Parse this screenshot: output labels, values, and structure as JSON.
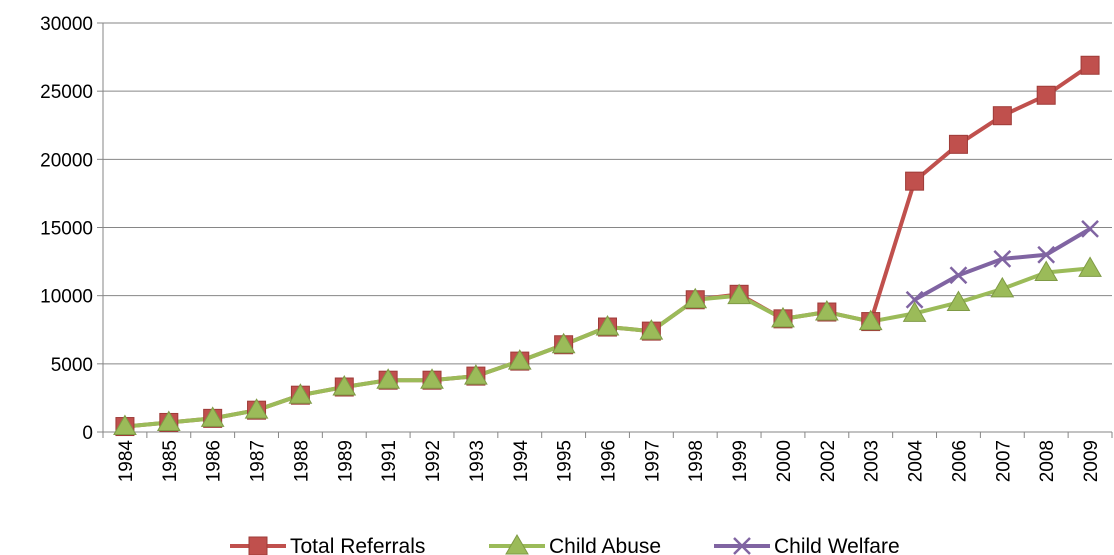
{
  "chart_data": {
    "type": "line",
    "title": "",
    "xlabel": "",
    "ylabel": "",
    "categories": [
      "1984",
      "1985",
      "1986",
      "1987",
      "1988",
      "1989",
      "1991",
      "1992",
      "1993",
      "1994",
      "1995",
      "1996",
      "1997",
      "1998",
      "1999",
      "2000",
      "2002",
      "2003",
      "2004",
      "2006",
      "2007",
      "2008",
      "2009"
    ],
    "ylim": [
      0,
      30000
    ],
    "yticks": [
      0,
      5000,
      10000,
      15000,
      20000,
      25000,
      30000
    ],
    "grid": true,
    "legend_position": "bottom",
    "series": [
      {
        "name": "Total Referrals",
        "color": "#c0504d",
        "marker": "square",
        "values": [
          400,
          700,
          1000,
          1600,
          2700,
          3300,
          3800,
          3800,
          4100,
          5200,
          6400,
          7700,
          7400,
          9700,
          10100,
          8300,
          8800,
          8100,
          18400,
          21100,
          23200,
          24700,
          26900
        ]
      },
      {
        "name": "Child Abuse",
        "color": "#9bbb59",
        "marker": "triangle",
        "values": [
          400,
          700,
          1000,
          1600,
          2700,
          3300,
          3800,
          3800,
          4100,
          5200,
          6400,
          7700,
          7400,
          9700,
          10000,
          8300,
          8800,
          8100,
          8700,
          9500,
          10500,
          11700,
          12000
        ]
      },
      {
        "name": "Child Welfare",
        "color": "#8064a2",
        "marker": "x",
        "values": [
          null,
          null,
          null,
          null,
          null,
          null,
          null,
          null,
          null,
          null,
          null,
          null,
          null,
          null,
          null,
          null,
          null,
          null,
          9700,
          11500,
          12700,
          13000,
          14900
        ]
      }
    ]
  }
}
